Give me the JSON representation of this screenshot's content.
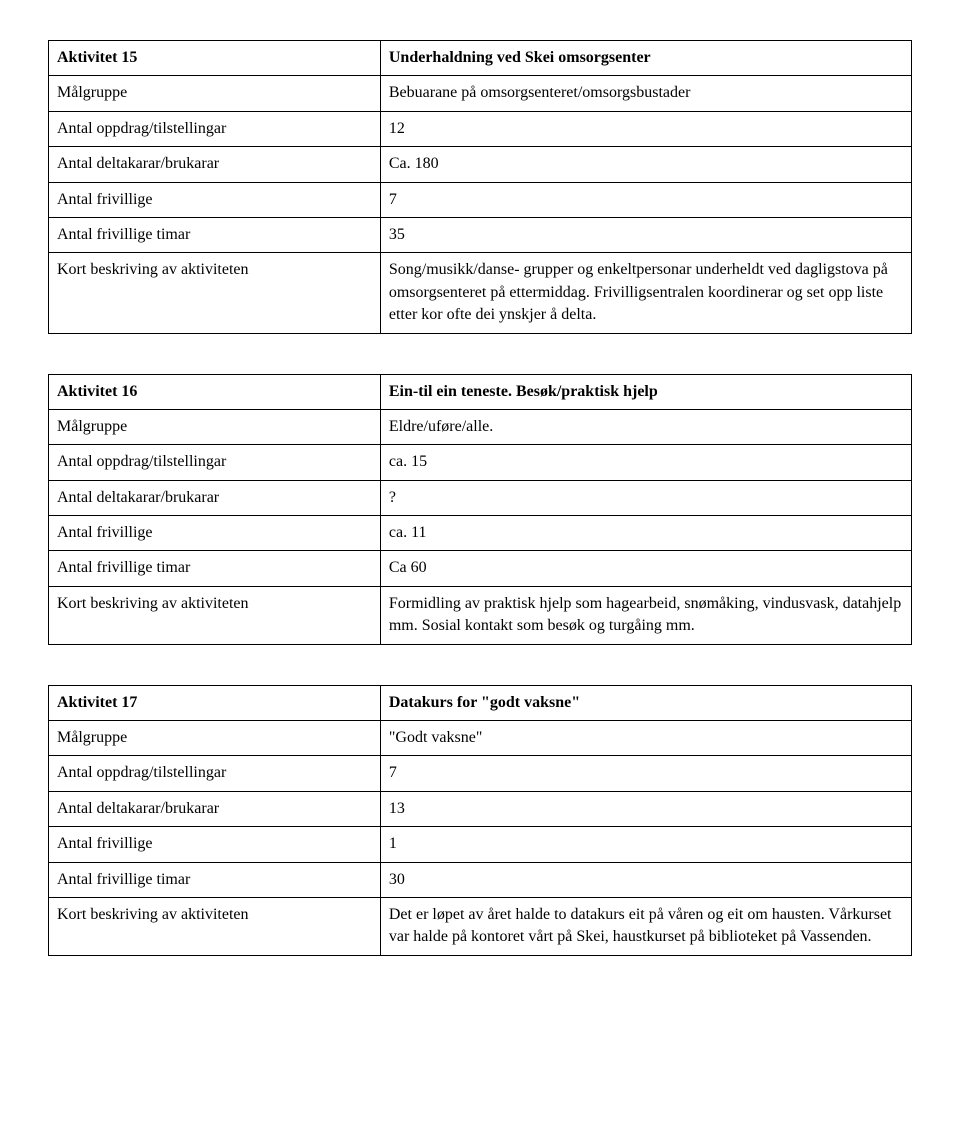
{
  "tables": [
    {
      "rows": [
        {
          "label": "Aktivitet 15",
          "value": "Underhaldning ved Skei omsorgsenter",
          "bold": true
        },
        {
          "label": "Målgruppe",
          "value": "Bebuarane på omsorgsenteret/omsorgsbustader"
        },
        {
          "label": "Antal oppdrag/tilstellingar",
          "value": "12"
        },
        {
          "label": "Antal deltakarar/brukarar",
          "value": "Ca. 180"
        },
        {
          "label": "Antal frivillige",
          "value": "7"
        },
        {
          "label": "Antal frivillige timar",
          "value": "35"
        },
        {
          "label": "Kort beskriving av aktiviteten",
          "value": "Song/musikk/danse- grupper og enkeltpersonar underheldt ved dagligstova på omsorgsenteret på ettermiddag. Frivilligsentralen koordinerar og set opp liste etter kor ofte dei ynskjer å delta."
        }
      ]
    },
    {
      "rows": [
        {
          "label": "Aktivitet 16",
          "value": "Ein-til ein teneste. Besøk/praktisk hjelp",
          "bold": true
        },
        {
          "label": "Målgruppe",
          "value": "Eldre/uføre/alle."
        },
        {
          "label": "Antal oppdrag/tilstellingar",
          "value": "ca. 15"
        },
        {
          "label": "Antal deltakarar/brukarar",
          "value": "?"
        },
        {
          "label": "Antal frivillige",
          "value": "ca. 11"
        },
        {
          "label": "Antal frivillige timar",
          "value": "Ca 60"
        },
        {
          "label": "Kort beskriving av aktiviteten",
          "value": "Formidling av praktisk hjelp som hagearbeid, snømåking, vindusvask, datahjelp mm. Sosial kontakt som besøk og turgåing mm."
        }
      ]
    },
    {
      "rows": [
        {
          "label": "Aktivitet 17",
          "value": "Datakurs for \"godt vaksne\"",
          "bold": true
        },
        {
          "label": "Målgruppe",
          "value": "\"Godt vaksne\""
        },
        {
          "label": "Antal oppdrag/tilstellingar",
          "value": "7"
        },
        {
          "label": "Antal deltakarar/brukarar",
          "value": "13"
        },
        {
          "label": "Antal frivillige",
          "value": "1"
        },
        {
          "label": "Antal frivillige timar",
          "value": "30"
        },
        {
          "label": "Kort beskriving av aktiviteten",
          "value": "Det er  løpet av året halde to datakurs eit på våren og eit om hausten. Vårkurset var halde på kontoret vårt på Skei, haustkurset på biblioteket på Vassenden."
        }
      ]
    }
  ]
}
